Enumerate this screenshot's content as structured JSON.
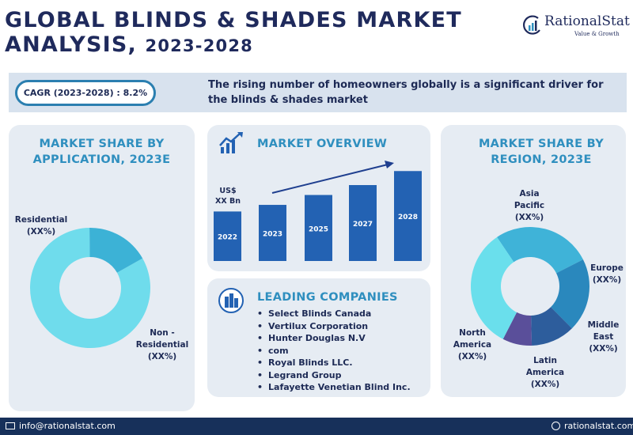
{
  "header": {
    "title_line1": "GLOBAL BLINDS & SHADES MARKET",
    "title_line2_prefix": "ANALYSIS,",
    "title_line2_years": "2023-2028"
  },
  "logo": {
    "name": "RationalStat",
    "tagline": "Value & Growth"
  },
  "banner": {
    "cagr": "CAGR (2023-2028) : 8.2%",
    "driver": "The rising number of homeowners globally is a significant driver for the blinds & shades market"
  },
  "application": {
    "title_line1": "MARKET SHARE BY",
    "title_line2": "APPLICATION, 2023E",
    "labels": {
      "residential_name": "Residential",
      "residential_value": "(XX%)",
      "nonres_name_1": "Non -",
      "nonres_name_2": "Residential",
      "nonres_value": "(XX%)"
    }
  },
  "overview": {
    "title": "MARKET OVERVIEW",
    "unit_line1": "US$",
    "unit_line2": "XX Bn"
  },
  "companies": {
    "title": "LEADING COMPANIES",
    "items": [
      "Select Blinds Canada",
      "Vertilux Corporation",
      "Hunter Douglas N.V",
      "com",
      "Royal Blinds LLC.",
      "Legrand Group",
      "Lafayette Venetian Blind Inc."
    ]
  },
  "region": {
    "title_line1": "MARKET SHARE BY",
    "title_line2": "REGION, 2023E",
    "labels": {
      "ap_1": "Asia",
      "ap_2": "Pacific",
      "ap_v": "(XX%)",
      "eu_1": "Europe",
      "eu_v": "(XX%)",
      "me_1": "Middle",
      "me_2": "East",
      "me_v": "(XX%)",
      "la_1": "Latin",
      "la_2": "America",
      "la_v": "(XX%)",
      "na_1": "North",
      "na_2": "America",
      "na_v": "(XX%)"
    }
  },
  "footer": {
    "email": "info@rationalstat.com",
    "website": "rationalstat.com"
  },
  "colors": {
    "navy": "#1f2a5c",
    "accent": "#2f8fbf",
    "bar": "#2362b3",
    "panel": "#e6ecf3"
  },
  "chart_data": [
    {
      "type": "pie",
      "title": "MARKET SHARE BY APPLICATION, 2023E",
      "donut": true,
      "categories": [
        "Residential",
        "Non - Residential"
      ],
      "values": [
        83,
        17
      ],
      "colors": [
        "#6fdcec",
        "#3cb2d6"
      ]
    },
    {
      "type": "bar",
      "title": "MARKET OVERVIEW",
      "ylabel": "US$ XX Bn",
      "categories": [
        "2022",
        "2023",
        "2025",
        "2027",
        "2028"
      ],
      "values": [
        60,
        68,
        80,
        92,
        109
      ],
      "ylim": [
        0,
        115
      ],
      "trend_arrow": true
    },
    {
      "type": "pie",
      "title": "MARKET SHARE BY REGION, 2023E",
      "donut": true,
      "categories": [
        "Asia Pacific",
        "Europe",
        "Middle East",
        "Latin America",
        "North America"
      ],
      "values": [
        27,
        20,
        12,
        8,
        33
      ],
      "colors": [
        "#3fb3d8",
        "#2a88bd",
        "#2d5d9c",
        "#5a4f9a",
        "#6adfec"
      ]
    }
  ]
}
